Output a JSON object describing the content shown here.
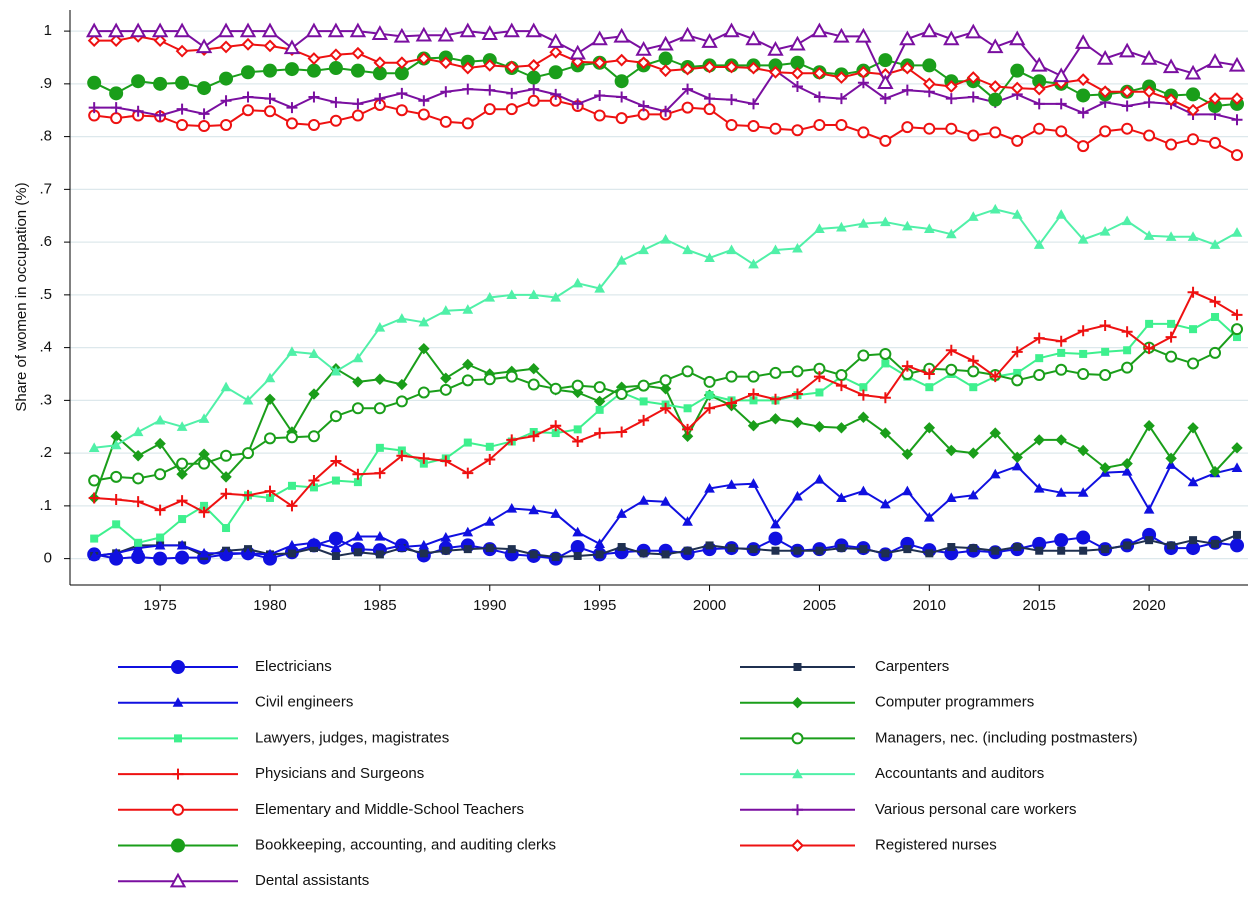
{
  "chart_data": {
    "type": "line",
    "y_label": "Share of women in occupation (%)",
    "xlim": [
      1970.9,
      2024.5
    ],
    "ylim": [
      -0.05,
      1.04
    ],
    "xticks": [
      1975,
      1980,
      1985,
      1990,
      1995,
      2000,
      2005,
      2010,
      2015,
      2020
    ],
    "yticks": [
      0,
      {
        "value": 0.1,
        "label": ".1"
      },
      {
        "value": 0.2,
        "label": ".2"
      },
      {
        "value": 0.3,
        "label": ".3"
      },
      {
        "value": 0.4,
        "label": ".4"
      },
      {
        "value": 0.5,
        "label": ".5"
      },
      {
        "value": 0.6,
        "label": ".6"
      },
      {
        "value": 0.7,
        "label": ".7"
      },
      {
        "value": 0.8,
        "label": ".8"
      },
      {
        "value": 0.9,
        "label": ".9"
      },
      1
    ],
    "grid": true,
    "x": [
      1972,
      1973,
      1974,
      1975,
      1976,
      1977,
      1978,
      1979,
      1980,
      1981,
      1982,
      1983,
      1984,
      1985,
      1986,
      1987,
      1988,
      1989,
      1990,
      1991,
      1992,
      1993,
      1994,
      1995,
      1996,
      1997,
      1998,
      1999,
      2000,
      2001,
      2002,
      2003,
      2004,
      2005,
      2006,
      2007,
      2008,
      2009,
      2010,
      2011,
      2012,
      2013,
      2014,
      2015,
      2016,
      2017,
      2018,
      2019,
      2020,
      2021,
      2022,
      2023,
      2024
    ],
    "series": [
      {
        "name": "Electricians",
        "color": "#1010e0",
        "marker": "circle",
        "filled": true,
        "values": [
          0.008,
          0.0,
          0.003,
          0.0,
          0.002,
          0.002,
          0.008,
          0.01,
          0.0,
          0.012,
          0.025,
          0.038,
          0.018,
          0.016,
          0.025,
          0.006,
          0.02,
          0.025,
          0.018,
          0.008,
          0.005,
          0.0,
          0.022,
          0.008,
          0.012,
          0.015,
          0.015,
          0.01,
          0.018,
          0.02,
          0.018,
          0.038,
          0.015,
          0.018,
          0.025,
          0.02,
          0.008,
          0.028,
          0.016,
          0.01,
          0.015,
          0.012,
          0.018,
          0.028,
          0.035,
          0.04,
          0.018,
          0.025,
          0.045,
          0.02,
          0.02,
          0.03,
          0.025
        ]
      },
      {
        "name": "Carpenters",
        "color": "#1f3050",
        "marker": "square",
        "filled": true,
        "values": [
          0.005,
          0.01,
          0.025,
          0.025,
          0.025,
          0.005,
          0.015,
          0.018,
          0.008,
          0.01,
          0.02,
          0.005,
          0.012,
          0.008,
          0.02,
          0.01,
          0.015,
          0.018,
          0.02,
          0.018,
          0.008,
          0.003,
          0.005,
          0.008,
          0.022,
          0.01,
          0.008,
          0.015,
          0.025,
          0.02,
          0.018,
          0.015,
          0.015,
          0.015,
          0.02,
          0.018,
          0.01,
          0.018,
          0.01,
          0.022,
          0.02,
          0.015,
          0.022,
          0.015,
          0.015,
          0.015,
          0.018,
          0.025,
          0.035,
          0.025,
          0.035,
          0.028,
          0.045
        ]
      },
      {
        "name": "Civil engineers",
        "color": "#1010e0",
        "marker": "triangle",
        "filled": true,
        "values": [
          0.005,
          0.01,
          0.02,
          0.025,
          0.025,
          0.01,
          0.01,
          0.01,
          0.008,
          0.025,
          0.03,
          0.02,
          0.042,
          0.042,
          0.022,
          0.025,
          0.04,
          0.05,
          0.07,
          0.095,
          0.092,
          0.085,
          0.05,
          0.028,
          0.085,
          0.11,
          0.108,
          0.07,
          0.133,
          0.14,
          0.142,
          0.065,
          0.118,
          0.15,
          0.115,
          0.128,
          0.103,
          0.128,
          0.078,
          0.115,
          0.12,
          0.16,
          0.175,
          0.133,
          0.125,
          0.125,
          0.163,
          0.165,
          0.093,
          0.178,
          0.145,
          0.162,
          0.172
        ]
      },
      {
        "name": "Computer programmers",
        "color": "#1a9e1a",
        "marker": "diamond",
        "filled": true,
        "values": [
          0.115,
          0.232,
          0.195,
          0.218,
          0.16,
          0.198,
          0.155,
          0.2,
          0.302,
          0.24,
          0.312,
          0.36,
          0.335,
          0.34,
          0.33,
          0.398,
          0.342,
          0.368,
          0.35,
          0.355,
          0.36,
          0.32,
          0.315,
          0.298,
          0.325,
          0.328,
          0.322,
          0.232,
          0.31,
          0.29,
          0.252,
          0.265,
          0.258,
          0.25,
          0.248,
          0.268,
          0.238,
          0.198,
          0.248,
          0.205,
          0.2,
          0.238,
          0.192,
          0.225,
          0.225,
          0.205,
          0.172,
          0.18,
          0.252,
          0.19,
          0.248,
          0.165,
          0.21
        ]
      },
      {
        "name": "Lawyers, judges, magistrates",
        "color": "#3ef08e",
        "marker": "square",
        "filled": true,
        "values": [
          0.038,
          0.065,
          0.03,
          0.04,
          0.075,
          0.1,
          0.058,
          0.12,
          0.115,
          0.138,
          0.135,
          0.148,
          0.145,
          0.21,
          0.205,
          0.18,
          0.19,
          0.22,
          0.212,
          0.222,
          0.24,
          0.238,
          0.245,
          0.282,
          0.315,
          0.298,
          0.292,
          0.285,
          0.31,
          0.3,
          0.3,
          0.3,
          0.31,
          0.315,
          0.345,
          0.325,
          0.37,
          0.345,
          0.325,
          0.35,
          0.325,
          0.345,
          0.352,
          0.38,
          0.39,
          0.388,
          0.392,
          0.395,
          0.445,
          0.445,
          0.435,
          0.458,
          0.42
        ]
      },
      {
        "name": "Managers, nec. (including postmasters)",
        "color": "#1a9e1a",
        "marker": "circle",
        "filled": false,
        "values": [
          0.148,
          0.155,
          0.152,
          0.16,
          0.18,
          0.18,
          0.195,
          0.2,
          0.228,
          0.23,
          0.232,
          0.27,
          0.285,
          0.285,
          0.298,
          0.315,
          0.32,
          0.338,
          0.34,
          0.345,
          0.33,
          0.322,
          0.328,
          0.325,
          0.312,
          0.328,
          0.338,
          0.355,
          0.335,
          0.345,
          0.345,
          0.352,
          0.355,
          0.36,
          0.348,
          0.385,
          0.388,
          0.35,
          0.36,
          0.358,
          0.355,
          0.348,
          0.338,
          0.348,
          0.358,
          0.35,
          0.348,
          0.362,
          0.4,
          0.383,
          0.37,
          0.39,
          0.435
        ]
      },
      {
        "name": "Physicians and Surgeons",
        "color": "#ee1111",
        "marker": "plus",
        "filled": false,
        "values": [
          0.115,
          0.112,
          0.108,
          0.092,
          0.11,
          0.088,
          0.123,
          0.12,
          0.128,
          0.1,
          0.148,
          0.185,
          0.16,
          0.162,
          0.195,
          0.19,
          0.185,
          0.162,
          0.188,
          0.225,
          0.232,
          0.252,
          0.222,
          0.238,
          0.24,
          0.262,
          0.285,
          0.245,
          0.285,
          0.295,
          0.312,
          0.302,
          0.312,
          0.345,
          0.328,
          0.31,
          0.305,
          0.365,
          0.35,
          0.395,
          0.375,
          0.345,
          0.392,
          0.418,
          0.412,
          0.432,
          0.442,
          0.43,
          0.398,
          0.42,
          0.505,
          0.487,
          0.462
        ]
      },
      {
        "name": "Accountants and auditors",
        "color": "#50f0a8",
        "marker": "triangle",
        "filled": true,
        "values": [
          0.21,
          0.215,
          0.24,
          0.262,
          0.25,
          0.265,
          0.325,
          0.3,
          0.342,
          0.392,
          0.388,
          0.355,
          0.38,
          0.438,
          0.455,
          0.448,
          0.47,
          0.472,
          0.495,
          0.5,
          0.5,
          0.495,
          0.522,
          0.512,
          0.565,
          0.585,
          0.605,
          0.585,
          0.57,
          0.585,
          0.558,
          0.585,
          0.588,
          0.625,
          0.628,
          0.635,
          0.638,
          0.63,
          0.625,
          0.615,
          0.648,
          0.662,
          0.652,
          0.595,
          0.652,
          0.605,
          0.62,
          0.64,
          0.612,
          0.61,
          0.61,
          0.595,
          0.618
        ]
      },
      {
        "name": "Elementary and Middle-School Teachers",
        "color": "#ee1111",
        "marker": "circle",
        "filled": false,
        "values": [
          0.84,
          0.835,
          0.84,
          0.838,
          0.822,
          0.82,
          0.822,
          0.85,
          0.848,
          0.825,
          0.822,
          0.83,
          0.84,
          0.86,
          0.85,
          0.842,
          0.828,
          0.825,
          0.852,
          0.852,
          0.868,
          0.868,
          0.858,
          0.84,
          0.835,
          0.842,
          0.842,
          0.855,
          0.852,
          0.822,
          0.82,
          0.815,
          0.812,
          0.822,
          0.822,
          0.808,
          0.792,
          0.818,
          0.815,
          0.815,
          0.802,
          0.808,
          0.792,
          0.815,
          0.81,
          0.782,
          0.81,
          0.815,
          0.802,
          0.785,
          0.795,
          0.788,
          0.765
        ]
      },
      {
        "name": "Various personal care workers",
        "color": "#7a0fa0",
        "marker": "plus",
        "filled": false,
        "values": [
          0.855,
          0.855,
          0.848,
          0.84,
          0.852,
          0.843,
          0.868,
          0.875,
          0.872,
          0.855,
          0.875,
          0.865,
          0.862,
          0.872,
          0.882,
          0.868,
          0.885,
          0.89,
          0.888,
          0.882,
          0.89,
          0.88,
          0.862,
          0.878,
          0.875,
          0.858,
          0.848,
          0.89,
          0.872,
          0.87,
          0.862,
          0.925,
          0.895,
          0.875,
          0.872,
          0.902,
          0.872,
          0.888,
          0.885,
          0.872,
          0.875,
          0.865,
          0.88,
          0.862,
          0.862,
          0.845,
          0.865,
          0.858,
          0.865,
          0.862,
          0.842,
          0.842,
          0.832
        ]
      },
      {
        "name": "Bookkeeping, accounting, and auditing clerks",
        "color": "#1a9e1a",
        "marker": "circle",
        "filled": true,
        "values": [
          0.902,
          0.882,
          0.905,
          0.9,
          0.902,
          0.892,
          0.91,
          0.922,
          0.925,
          0.928,
          0.925,
          0.93,
          0.925,
          0.92,
          0.92,
          0.948,
          0.95,
          0.942,
          0.945,
          0.93,
          0.912,
          0.922,
          0.935,
          0.94,
          0.905,
          0.935,
          0.948,
          0.932,
          0.935,
          0.935,
          0.935,
          0.935,
          0.94,
          0.922,
          0.918,
          0.925,
          0.945,
          0.935,
          0.935,
          0.905,
          0.905,
          0.87,
          0.925,
          0.905,
          0.9,
          0.878,
          0.88,
          0.885,
          0.895,
          0.878,
          0.88,
          0.858,
          0.862
        ]
      },
      {
        "name": "Registered nurses",
        "color": "#ee1111",
        "marker": "diamond",
        "filled": false,
        "values": [
          0.982,
          0.982,
          0.99,
          0.982,
          0.962,
          0.965,
          0.97,
          0.975,
          0.972,
          0.965,
          0.948,
          0.955,
          0.958,
          0.94,
          0.94,
          0.948,
          0.94,
          0.93,
          0.935,
          0.932,
          0.935,
          0.96,
          0.942,
          0.94,
          0.945,
          0.94,
          0.925,
          0.928,
          0.932,
          0.932,
          0.93,
          0.922,
          0.92,
          0.92,
          0.912,
          0.922,
          0.918,
          0.93,
          0.9,
          0.895,
          0.912,
          0.895,
          0.892,
          0.89,
          0.902,
          0.908,
          0.885,
          0.885,
          0.885,
          0.87,
          0.85,
          0.872,
          0.872
        ]
      },
      {
        "name": "Dental assistants",
        "color": "#7a0fa0",
        "marker": "triangle",
        "filled": false,
        "values": [
          1.0,
          1.0,
          1.0,
          1.0,
          1.0,
          0.97,
          1.0,
          1.0,
          1.0,
          0.968,
          1.0,
          1.0,
          1.0,
          0.995,
          0.99,
          0.992,
          0.992,
          1.0,
          0.995,
          1.0,
          1.0,
          0.98,
          0.958,
          0.985,
          0.99,
          0.965,
          0.975,
          0.992,
          0.98,
          1.0,
          0.985,
          0.965,
          0.975,
          1.0,
          0.99,
          0.99,
          0.902,
          0.985,
          1.0,
          0.985,
          0.998,
          0.97,
          0.985,
          0.935,
          0.915,
          0.978,
          0.948,
          0.962,
          0.948,
          0.932,
          0.92,
          0.942,
          0.935
        ]
      }
    ]
  }
}
